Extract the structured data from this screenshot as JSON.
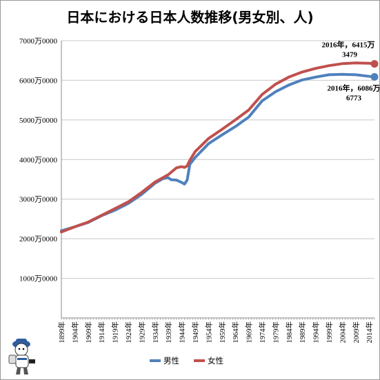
{
  "chart_data": {
    "type": "line",
    "title": "日本における日本人数推移(男女別、人)",
    "ylim": [
      0,
      7000
    ],
    "yticks": [
      1000,
      2000,
      3000,
      4000,
      5000,
      6000,
      7000
    ],
    "ytick_labels": [
      "1000万0000",
      "2000万0000",
      "3000万0000",
      "4000万0000",
      "5000万0000",
      "6000万0000",
      "7000万0000"
    ],
    "xlim": [
      1899,
      2016
    ],
    "xticks": [
      1899,
      1904,
      1909,
      1914,
      1919,
      1924,
      1929,
      1934,
      1939,
      1944,
      1949,
      1954,
      1959,
      1964,
      1969,
      1974,
      1979,
      1984,
      1989,
      1994,
      1999,
      2004,
      2009,
      2014
    ],
    "xtick_labels": [
      "1899年",
      "1904年",
      "1909年",
      "1914年",
      "1919年",
      "1924年",
      "1929年",
      "1934年",
      "1939年",
      "1944年",
      "1949年",
      "1954年",
      "1959年",
      "1964年",
      "1969年",
      "1974年",
      "1979年",
      "1984年",
      "1989年",
      "1994年",
      "1999年",
      "2004年",
      "2009年",
      "2014年"
    ],
    "grid": true,
    "legend_position": "bottom",
    "series": [
      {
        "name": "男性",
        "color": "#4f81bd",
        "points": [
          [
            1899,
            2200
          ],
          [
            1904,
            2300
          ],
          [
            1909,
            2410
          ],
          [
            1914,
            2580
          ],
          [
            1919,
            2720
          ],
          [
            1924,
            2890
          ],
          [
            1929,
            3120
          ],
          [
            1934,
            3400
          ],
          [
            1937,
            3520
          ],
          [
            1939,
            3540
          ],
          [
            1940,
            3490
          ],
          [
            1942,
            3480
          ],
          [
            1943,
            3450
          ],
          [
            1944,
            3420
          ],
          [
            1945,
            3380
          ],
          [
            1946,
            3480
          ],
          [
            1947,
            3880
          ],
          [
            1949,
            4050
          ],
          [
            1954,
            4400
          ],
          [
            1959,
            4620
          ],
          [
            1964,
            4830
          ],
          [
            1969,
            5070
          ],
          [
            1974,
            5480
          ],
          [
            1979,
            5710
          ],
          [
            1984,
            5880
          ],
          [
            1989,
            6010
          ],
          [
            1994,
            6080
          ],
          [
            1999,
            6140
          ],
          [
            2004,
            6150
          ],
          [
            2009,
            6140
          ],
          [
            2014,
            6100
          ],
          [
            2016,
            6086
          ]
        ]
      },
      {
        "name": "女性",
        "color": "#c0504d",
        "points": [
          [
            1899,
            2170
          ],
          [
            1904,
            2300
          ],
          [
            1909,
            2420
          ],
          [
            1914,
            2590
          ],
          [
            1919,
            2760
          ],
          [
            1924,
            2930
          ],
          [
            1929,
            3170
          ],
          [
            1934,
            3430
          ],
          [
            1939,
            3620
          ],
          [
            1942,
            3790
          ],
          [
            1944,
            3820
          ],
          [
            1945,
            3800
          ],
          [
            1946,
            3840
          ],
          [
            1947,
            3980
          ],
          [
            1949,
            4200
          ],
          [
            1954,
            4530
          ],
          [
            1959,
            4760
          ],
          [
            1964,
            5000
          ],
          [
            1969,
            5250
          ],
          [
            1974,
            5640
          ],
          [
            1979,
            5900
          ],
          [
            1984,
            6080
          ],
          [
            1989,
            6210
          ],
          [
            1994,
            6300
          ],
          [
            1999,
            6370
          ],
          [
            2004,
            6420
          ],
          [
            2009,
            6440
          ],
          [
            2014,
            6430
          ],
          [
            2016,
            6415
          ]
        ]
      }
    ],
    "annotations": {
      "female_line1": "2016年，6415万",
      "female_line2": "3479",
      "male_line1": "2016年，6086万",
      "male_line2": "6773"
    }
  },
  "mascot": {
    "icon": "reporter-mascot-icon"
  }
}
